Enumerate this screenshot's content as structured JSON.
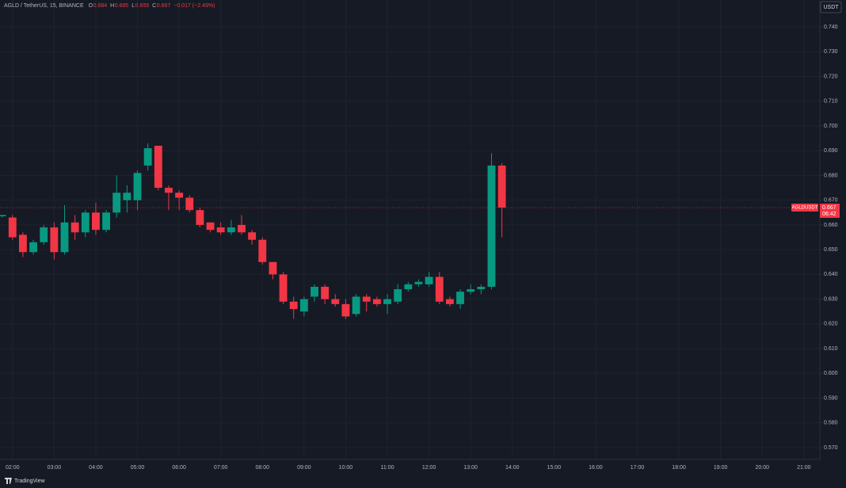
{
  "header": {
    "symbol": "AGLD / TetherUS, 15, BINANCE",
    "ohlc": [
      {
        "key": "O",
        "value": 0.684
      },
      {
        "key": "H",
        "value": 0.685
      },
      {
        "key": "L",
        "value": 0.655
      },
      {
        "key": "C",
        "value": 0.667
      }
    ],
    "change": "−0.017 (−2.49%)"
  },
  "currency": "USDT",
  "brand": "TradingView",
  "chart_data": {
    "type": "candlestick",
    "x": [
      "01:45",
      "02:00",
      "02:15",
      "02:30",
      "02:45",
      "03:00",
      "03:15",
      "03:30",
      "03:45",
      "04:00",
      "04:15",
      "04:30",
      "04:45",
      "05:00",
      "05:15",
      "05:30",
      "05:45",
      "06:00",
      "06:15",
      "06:30",
      "06:45",
      "07:00",
      "07:15",
      "07:30",
      "07:45",
      "08:00",
      "08:15",
      "08:30",
      "08:45",
      "09:00",
      "09:15",
      "09:30",
      "09:45",
      "10:00",
      "10:15",
      "10:30",
      "10:45",
      "11:00",
      "11:15",
      "11:30",
      "11:45",
      "12:00",
      "12:15",
      "12:30",
      "12:45",
      "13:00",
      "13:15",
      "13:30",
      "13:45"
    ],
    "open": [
      0.6635,
      0.663,
      0.656,
      0.649,
      0.653,
      0.659,
      0.649,
      0.661,
      0.657,
      0.665,
      0.658,
      0.665,
      0.67,
      0.67,
      0.684,
      0.692,
      0.675,
      0.673,
      0.671,
      0.666,
      0.661,
      0.659,
      0.657,
      0.66,
      0.657,
      0.654,
      0.645,
      0.64,
      0.629,
      0.625,
      0.631,
      0.635,
      0.63,
      0.628,
      0.624,
      0.631,
      0.63,
      0.628,
      0.629,
      0.634,
      0.636,
      0.636,
      0.639,
      0.63,
      0.628,
      0.633,
      0.634,
      0.635,
      0.684
    ],
    "high": [
      0.664,
      0.664,
      0.657,
      0.654,
      0.66,
      0.661,
      0.668,
      0.664,
      0.666,
      0.669,
      0.666,
      0.68,
      0.676,
      0.682,
      0.693,
      0.692,
      0.676,
      0.674,
      0.672,
      0.667,
      0.661,
      0.661,
      0.662,
      0.664,
      0.658,
      0.655,
      0.645,
      0.641,
      0.631,
      0.631,
      0.636,
      0.636,
      0.632,
      0.63,
      0.632,
      0.632,
      0.631,
      0.632,
      0.636,
      0.637,
      0.638,
      0.641,
      0.641,
      0.631,
      0.634,
      0.636,
      0.636,
      0.689,
      0.685
    ],
    "low": [
      0.663,
      0.654,
      0.647,
      0.648,
      0.652,
      0.646,
      0.648,
      0.654,
      0.655,
      0.656,
      0.657,
      0.663,
      0.665,
      0.666,
      0.682,
      0.674,
      0.666,
      0.666,
      0.665,
      0.659,
      0.657,
      0.656,
      0.656,
      0.656,
      0.652,
      0.644,
      0.638,
      0.628,
      0.622,
      0.623,
      0.629,
      0.628,
      0.627,
      0.622,
      0.623,
      0.625,
      0.627,
      0.624,
      0.628,
      0.633,
      0.635,
      0.635,
      0.628,
      0.627,
      0.626,
      0.632,
      0.632,
      0.634,
      0.655
    ],
    "close": [
      0.664,
      0.655,
      0.649,
      0.653,
      0.659,
      0.649,
      0.661,
      0.657,
      0.665,
      0.658,
      0.665,
      0.673,
      0.673,
      0.681,
      0.691,
      0.675,
      0.673,
      0.671,
      0.666,
      0.66,
      0.658,
      0.657,
      0.659,
      0.657,
      0.654,
      0.645,
      0.64,
      0.629,
      0.626,
      0.63,
      0.635,
      0.63,
      0.628,
      0.623,
      0.631,
      0.629,
      0.628,
      0.63,
      0.634,
      0.636,
      0.637,
      0.639,
      0.629,
      0.628,
      0.633,
      0.634,
      0.635,
      0.684,
      0.667
    ],
    "up_color": "#089981",
    "down_color": "#f23645",
    "xlim": [
      "01:42",
      "21:23"
    ],
    "xticks": [
      "02:00",
      "03:00",
      "04:00",
      "05:00",
      "06:00",
      "07:00",
      "08:00",
      "09:00",
      "10:00",
      "11:00",
      "12:00",
      "13:00",
      "14:00",
      "15:00",
      "16:00",
      "17:00",
      "18:00",
      "19:00",
      "20:00",
      "21:00"
    ],
    "ylim": [
      0.5652,
      0.7509
    ],
    "yticks": [
      {
        "value": 0.57,
        "label": "0.570"
      },
      {
        "value": 0.58,
        "label": "0.580"
      },
      {
        "value": 0.59,
        "label": "0.590"
      },
      {
        "value": 0.6,
        "label": "0.600"
      },
      {
        "value": 0.61,
        "label": "0.610"
      },
      {
        "value": 0.62,
        "label": "0.620"
      },
      {
        "value": 0.63,
        "label": "0.630"
      },
      {
        "value": 0.64,
        "label": "0.640"
      },
      {
        "value": 0.65,
        "label": "0.650"
      },
      {
        "value": 0.66,
        "label": "0.660"
      },
      {
        "value": 0.67,
        "label": "0.670"
      },
      {
        "value": 0.68,
        "label": "0.680"
      },
      {
        "value": 0.69,
        "label": "0.690"
      },
      {
        "value": 0.7,
        "label": "0.700"
      },
      {
        "value": 0.71,
        "label": "0.710"
      },
      {
        "value": 0.72,
        "label": "0.720"
      },
      {
        "value": 0.73,
        "label": "0.730"
      },
      {
        "value": 0.74,
        "label": "0.740"
      }
    ],
    "grid": true,
    "last_price": {
      "label": "AGLDUSDT",
      "value": 0.667,
      "countdown": "06:42"
    }
  }
}
